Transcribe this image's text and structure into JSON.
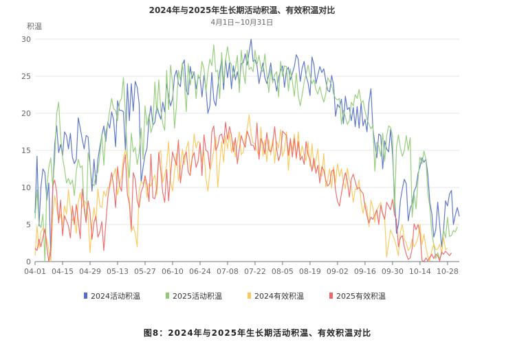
{
  "chart_data": {
    "type": "line",
    "title": "2024年与2025年生长期活动积温、有效积温对比",
    "subtitle": "4月1日~10月31日",
    "ylabel": "积温",
    "xlabel": "",
    "ylim": [
      0,
      30
    ],
    "yticks": [
      0,
      5,
      10,
      15,
      20,
      25,
      30
    ],
    "grid": true,
    "legend_position": "bottom",
    "x_start": "04-01",
    "x_end": "10-31",
    "x_tick_labels": [
      "04-01",
      "04-15",
      "04-29",
      "05-13",
      "05-27",
      "06-10",
      "06-24",
      "07-08",
      "07-22",
      "08-05",
      "08-19",
      "09-02",
      "09-16",
      "09-30",
      "10-14",
      "10-28"
    ],
    "series": [
      {
        "name": "2024活动积温",
        "color": "#5470c6",
        "values": [
          6.5,
          14.2,
          4.8,
          10.1,
          12.5,
          12.0,
          8.3,
          10.6,
          0.5,
          9.5,
          15.8,
          18.3,
          14.7,
          15.8,
          14.3,
          17.5,
          17.0,
          15.2,
          17.3,
          14.1,
          13.2,
          13.8,
          19.4,
          18.0,
          16.5,
          15.2,
          17.0,
          16.8,
          13.2,
          9.5,
          13.8,
          10.4,
          13.8,
          15.5,
          17.0,
          18.3,
          16.2,
          18.8,
          18.0,
          20.2,
          19.1,
          15.5,
          21.7,
          20.4,
          20.4,
          20.2,
          15.0,
          24.0,
          19.0,
          24.0,
          20.3,
          24.3,
          23.5,
          21.3,
          10.7,
          12.7,
          14.4,
          15.3,
          19.2,
          21.0,
          18.4,
          18.8,
          21.0,
          20.0,
          19.2,
          21.5,
          20.2,
          24.0,
          22.3,
          21.0,
          22.0,
          25.0,
          25.8,
          24.0,
          23.6,
          26.5,
          27.2,
          23.0,
          22.5,
          26.3,
          24.7,
          25.6,
          23.3,
          24.8,
          24.8,
          22.2,
          25.1,
          23.3,
          20.0,
          21.0,
          25.5,
          21.8,
          21.0,
          23.5,
          25.5,
          27.3,
          23.2,
          27.2,
          24.8,
          26.8,
          23.3,
          26.4,
          24.5,
          25.6,
          24.0,
          26.7,
          26.8,
          28.0,
          26.5,
          28.3,
          30.0,
          27.0,
          27.2,
          26.4,
          24.0,
          25.5,
          26.8,
          24.8,
          24.0,
          25.2,
          26.8,
          24.5,
          24.6,
          23.0,
          24.8,
          25.8,
          26.4,
          23.5,
          25.8,
          26.2,
          24.5,
          25.4,
          26.3,
          27.9,
          27.3,
          24.3,
          26.1,
          27.0,
          25.0,
          24.1,
          22.4,
          27.6,
          26.5,
          24.0,
          25.2,
          26.3,
          25.5,
          26.0,
          24.4,
          23.1,
          22.9,
          25.1,
          23.8,
          19.6,
          21.2,
          20.8,
          21.9,
          18.6,
          22.3,
          20.5,
          20.8,
          19.0,
          20.8,
          18.2,
          20.9,
          18.0,
          21.4,
          18.3,
          19.2,
          17.5,
          21.5,
          23.3,
          18.0,
          15.9,
          14.0,
          17.2,
          17.0,
          12.5,
          16.3,
          15.2,
          14.8,
          17.8,
          14.5,
          9.0,
          3.8,
          5.0,
          8.2,
          9.8,
          11.1,
          10.5,
          5.5,
          7.2,
          7.8,
          9.5,
          10.1,
          11.9,
          12.8,
          14.0,
          13.4,
          13.8,
          11.7,
          8.0,
          6.5,
          3.3,
          4.3,
          8.0,
          5.0,
          2.0,
          4.3,
          8.2,
          7.5,
          9.1,
          9.6,
          5.0,
          6.3,
          7.3,
          6.1
        ]
      },
      {
        "name": "2025活动积温",
        "color": "#91cc75",
        "values": [
          5.8,
          9.7,
          5.1,
          4.6,
          6.4,
          0.0,
          10.1,
          12.7,
          14.0,
          10.1,
          13.7,
          20.0,
          21.5,
          17.0,
          14.0,
          12.5,
          10.6,
          11.2,
          10.4,
          11.0,
          8.9,
          12.2,
          13.8,
          12.7,
          12.9,
          7.0,
          5.3,
          14.7,
          13.1,
          10.6,
          10.2,
          11.6,
          12.1,
          14.4,
          17.2,
          13.0,
          17.5,
          18.5,
          20.4,
          22.0,
          20.6,
          20.4,
          19.0,
          21.5,
          22.0,
          24.8,
          19.9,
          14.1,
          11.3,
          17.3,
          14.8,
          15.4,
          13.1,
          14.7,
          18.0,
          13.8,
          21.0,
          18.4,
          19.8,
          17.4,
          18.4,
          24.2,
          20.0,
          24.5,
          20.5,
          18.6,
          17.7,
          25.8,
          20.5,
          26.5,
          24.0,
          18.0,
          21.0,
          25.8,
          24.5,
          26.8,
          24.3,
          20.2,
          26.7,
          23.8,
          25.6,
          25.5,
          22.0,
          25.2,
          24.6,
          27.0,
          26.0,
          22.9,
          25.5,
          27.3,
          26.4,
          29.2,
          25.6,
          25.8,
          22.0,
          28.2,
          24.1,
          27.1,
          29.0,
          27.1,
          26.5,
          24.8,
          26.0,
          27.8,
          22.8,
          28.5,
          25.6,
          24.0,
          28.5,
          25.9,
          26.2,
          25.6,
          28.5,
          26.5,
          27.8,
          26.1,
          25.6,
          28.0,
          25.3,
          22.8,
          26.0,
          24.1,
          25.2,
          25.6,
          22.2,
          27.0,
          25.0,
          26.4,
          26.3,
          23.0,
          26.0,
          24.3,
          22.3,
          25.4,
          22.4,
          21.0,
          22.5,
          24.2,
          25.3,
          26.5,
          25.1,
          24.0,
          24.5,
          23.2,
          22.6,
          23.6,
          22.4,
          21.5,
          22.6,
          24.8,
          24.3,
          23.8,
          22.6,
          22.0,
          21.8,
          22.0,
          18.5,
          20.4,
          19.5,
          18.5,
          19.0,
          21.5,
          21.0,
          22.5,
          22.0,
          23.2,
          21.4,
          21.7,
          20.3,
          19.2,
          18.5,
          17.9,
          18.4,
          12.2,
          16.1,
          15.6,
          14.2,
          17.3,
          13.5,
          16.9,
          18.3,
          18.1,
          16.9,
          6.5,
          15.4,
          17.1,
          15.3,
          14.2,
          15.0,
          17.0,
          15.0,
          16.7,
          6.0,
          9.1,
          7.1,
          11.1,
          14.1,
          13.2,
          14.9,
          13.8,
          9.2,
          7.4,
          3.9,
          2.3,
          0.4,
          1.2,
          0.4,
          1.0,
          4.3,
          3.2,
          6.0,
          3.4,
          3.5,
          4.2,
          4.0,
          4.7
        ]
      },
      {
        "name": "2024有效积温",
        "color": "#fac858",
        "values": [
          0.8,
          4.8,
          1.8,
          4.0,
          4.5,
          4.0,
          3.0,
          1.6,
          0.0,
          6.1,
          8.9,
          7.3,
          5.5,
          6.4,
          5.0,
          7.5,
          6.4,
          9.7,
          7.1,
          5.5,
          6.0,
          3.8,
          8.0,
          9.3,
          7.3,
          8.2,
          7.8,
          6.2,
          1.2,
          5.0,
          7.3,
          5.5,
          9.8,
          7.5,
          7.3,
          9.5,
          8.8,
          10.0,
          10.0,
          11.0,
          11.7,
          12.6,
          9.0,
          10.3,
          11.5,
          14.0,
          15.0,
          13.8,
          8.4,
          4.0,
          4.8,
          3.8,
          2.0,
          9.6,
          10.8,
          10.5,
          11.1,
          8.7,
          10.5,
          10.2,
          11.0,
          11.7,
          9.0,
          14.6,
          15.0,
          10.7,
          11.7,
          13.0,
          16.2,
          10.7,
          9.5,
          12.1,
          14.6,
          10.9,
          12.5,
          15.2,
          13.1,
          15.2,
          16.2,
          12.2,
          14.0,
          17.2,
          15.3,
          16.2,
          16.0,
          13.5,
          14.8,
          11.2,
          9.5,
          12.1,
          13.4,
          15.0,
          16.8,
          10.0,
          13.2,
          16.2,
          13.4,
          17.0,
          15.2,
          17.4,
          14.7,
          16.2,
          14.1,
          16.0,
          17.5,
          14.4,
          14.8,
          16.7,
          17.9,
          19.8,
          17.2,
          16.0,
          15.9,
          15.0,
          14.2,
          18.1,
          14.2,
          16.4,
          13.5,
          16.5,
          14.4,
          16.5,
          13.3,
          16.2,
          15.3,
          17.8,
          14.2,
          15.0,
          17.5,
          12.3,
          16.3,
          15.1,
          17.2,
          13.8,
          17.5,
          14.0,
          15.6,
          14.3,
          13.6,
          16.2,
          12.8,
          15.9,
          12.6,
          13.7,
          15.2,
          11.8,
          11.5,
          14.6,
          10.0,
          11.0,
          12.5,
          9.9,
          12.8,
          10.6,
          13.2,
          11.5,
          12.5,
          10.7,
          9.8,
          12.6,
          11.0,
          10.3,
          8.0,
          9.8,
          9.7,
          11.0,
          8.0,
          6.5,
          7.9,
          7.2,
          4.7,
          8.3,
          7.3,
          5.3,
          7.0,
          7.5,
          8.0,
          6.5,
          5.8,
          0.6,
          2.5,
          4.3,
          3.6,
          3.0,
          2.0,
          0.8,
          4.0,
          5.0,
          3.0,
          2.5,
          1.5,
          1.9,
          3.0,
          2.0,
          2.5,
          3.3,
          5.0,
          2.3,
          3.7,
          2.0,
          0.6,
          0.1,
          1.5,
          2.4,
          1.6,
          1.7,
          2.3,
          1.2,
          3.2,
          1.6,
          1.8
        ]
      },
      {
        "name": "2025有效积温",
        "color": "#ee6666",
        "values": [
          1.8,
          1.5,
          3.0,
          2.0,
          3.3,
          4.4,
          1.9,
          0.0,
          1.6,
          10.2,
          11.0,
          9.4,
          5.2,
          8.3,
          3.5,
          6.2,
          5.5,
          4.8,
          3.2,
          7.5,
          5.0,
          7.7,
          5.5,
          3.1,
          9.8,
          7.4,
          5.3,
          8.2,
          6.6,
          3.0,
          5.3,
          6.1,
          3.3,
          4.0,
          5.4,
          1.5,
          5.1,
          8.5,
          10.4,
          12.0,
          10.2,
          7.3,
          12.8,
          10.3,
          9.5,
          13.0,
          14.4,
          9.1,
          7.8,
          4.4,
          12.0,
          11.1,
          8.2,
          7.3,
          9.4,
          10.1,
          11.6,
          10.4,
          8.1,
          14.5,
          8.6,
          8.5,
          10.0,
          14.7,
          12.3,
          9.3,
          8.0,
          12.4,
          8.2,
          11.8,
          14.8,
          13.8,
          13.0,
          16.4,
          10.6,
          12.7,
          14.2,
          14.8,
          12.1,
          11.6,
          14.0,
          14.7,
          12.7,
          13.5,
          16.0,
          11.6,
          17.1,
          15.0,
          14.8,
          12.5,
          17.5,
          18.3,
          15.0,
          15.6,
          17.0,
          17.2,
          15.9,
          18.8,
          16.5,
          18.2,
          17.0,
          14.8,
          16.7,
          13.2,
          15.2,
          17.0,
          16.1,
          15.4,
          17.6,
          16.8,
          15.7,
          15.7,
          15.0,
          18.7,
          13.8,
          16.6,
          16.0,
          14.5,
          17.4,
          15.1,
          14.8,
          15.8,
          18.2,
          15.2,
          13.6,
          14.6,
          17.6,
          17.3,
          17.0,
          14.3,
          16.6,
          14.1,
          16.6,
          14.0,
          16.2,
          13.7,
          14.2,
          13.1,
          16.2,
          14.4,
          13.7,
          12.2,
          13.9,
          11.9,
          13.0,
          10.6,
          12.8,
          12.3,
          11.0,
          10.2,
          10.5,
          12.2,
          12.4,
          9.6,
          8.1,
          7.5,
          9.2,
          10.8,
          12.0,
          10.9,
          8.7,
          11.1,
          11.8,
          10.8,
          9.8,
          10.0,
          9.5,
          9.2,
          7.5,
          6.2,
          5.2,
          6.0,
          5.7,
          6.3,
          7.0,
          5.0,
          7.6,
          6.4,
          5.7,
          8.0,
          7.5,
          7.0,
          8.4,
          6.3,
          5.7,
          2.0,
          3.2,
          3.5,
          2.0,
          1.0,
          0.3,
          0.5,
          1.8,
          5.1,
          4.3,
          5.0,
          3.8,
          0.2,
          0.0,
          0.5,
          0.1,
          0.6,
          1.0,
          0.4,
          1.0,
          0.8,
          0.1,
          1.3,
          1.0,
          1.4,
          1.1,
          0.8,
          1.2
        ]
      }
    ]
  },
  "caption": "图8：2024年与2025年生长期活动积温、有效积温对比"
}
